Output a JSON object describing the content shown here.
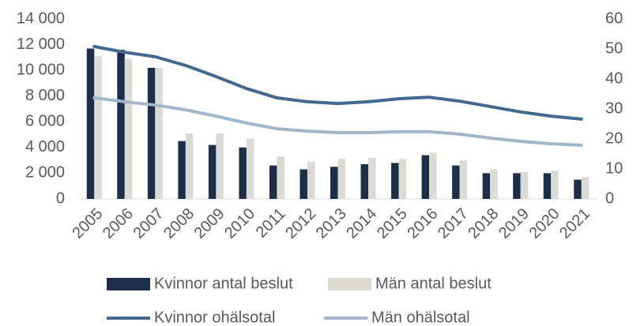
{
  "chart_data": {
    "type": "bar-line",
    "categories": [
      "2005",
      "2006",
      "2007",
      "2008",
      "2009",
      "2010",
      "2011",
      "2012",
      "2013",
      "2014",
      "2015",
      "2016",
      "2017",
      "2018",
      "2019",
      "2020",
      "2021"
    ],
    "series": [
      {
        "name": "Kvinnor antal beslut",
        "type": "bar",
        "color": "#1c2e4a",
        "values": [
          11700,
          11600,
          10200,
          4500,
          4200,
          4000,
          2600,
          2300,
          2500,
          2700,
          2800,
          3400,
          2600,
          2000,
          2000,
          2000,
          1500
        ]
      },
      {
        "name": "Män antal beslut",
        "type": "bar",
        "color": "#dcdad5",
        "values": [
          11100,
          10900,
          10200,
          5100,
          5100,
          4700,
          3300,
          2900,
          3100,
          3200,
          3100,
          3600,
          3000,
          2300,
          2100,
          2200,
          1700
        ]
      },
      {
        "name": "Kvinnor ohälsotal",
        "type": "line",
        "axis": "y2",
        "color": "#41698f",
        "values": [
          50.8,
          48.9,
          47.4,
          44.5,
          40.8,
          36.8,
          33.7,
          32.4,
          31.8,
          32.4,
          33.4,
          33.9,
          32.6,
          30.8,
          29,
          27.6,
          26.6
        ]
      },
      {
        "name": "Män ohälsotal",
        "type": "line",
        "axis": "y2",
        "color": "#a0b6ca",
        "values": [
          33.7,
          32.4,
          31.3,
          29.7,
          27.6,
          25.3,
          23.4,
          22.6,
          22.1,
          22.1,
          22.4,
          22.4,
          21.6,
          20.3,
          19.2,
          18.4,
          17.9
        ]
      }
    ],
    "ylim": [
      0,
      14000
    ],
    "yticks": [
      0,
      {
        "value": 2000,
        "label": "2 000"
      },
      {
        "value": 4000,
        "label": "4 000"
      },
      {
        "value": 6000,
        "label": "6 000"
      },
      {
        "value": 8000,
        "label": "8 000"
      },
      {
        "value": 10000,
        "label": "10 000"
      },
      {
        "value": 12000,
        "label": "12 000"
      },
      {
        "value": 14000,
        "label": "14 000"
      }
    ],
    "y2lim": [
      0,
      60
    ],
    "y2ticks": [
      0,
      10,
      20,
      30,
      40,
      50,
      60
    ]
  }
}
